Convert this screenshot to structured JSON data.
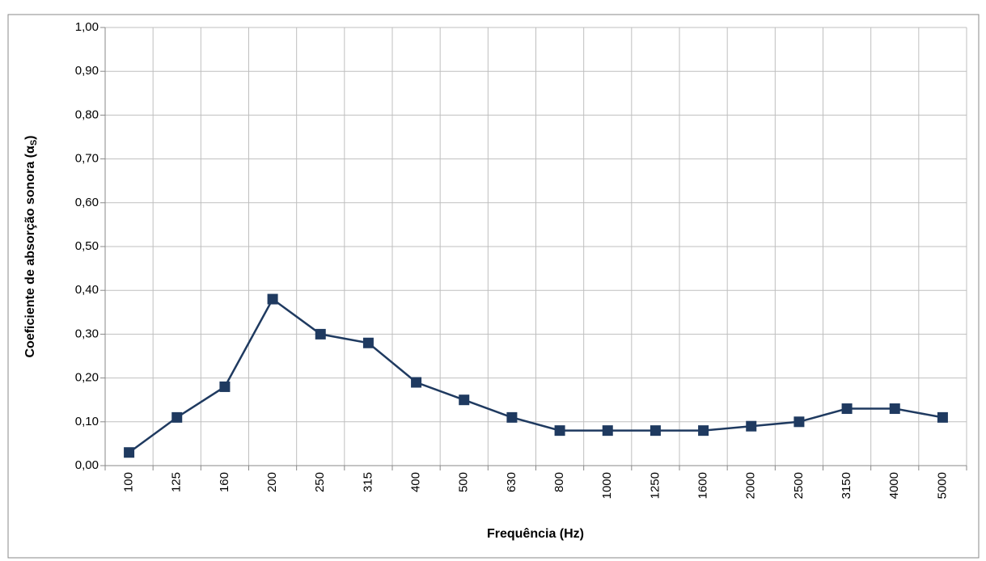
{
  "chart_data": {
    "type": "line",
    "x_label": "Frequência (Hz)",
    "y_label": "Coeficiente de absorção sonora (α",
    "y_label_sub": "S",
    "y_label_end": ")",
    "categories": [
      "100",
      "125",
      "160",
      "200",
      "250",
      "315",
      "400",
      "500",
      "630",
      "800",
      "1000",
      "1250",
      "1600",
      "2000",
      "2500",
      "3150",
      "4000",
      "5000"
    ],
    "series": [
      {
        "color": "#1f3a60",
        "values": [
          0.03,
          0.11,
          0.18,
          0.38,
          0.3,
          0.28,
          0.19,
          0.15,
          0.11,
          0.08,
          0.08,
          0.08,
          0.08,
          0.09,
          0.1,
          0.13,
          0.13,
          0.11
        ]
      }
    ],
    "ylim": [
      0,
      1
    ],
    "yticks": [
      {
        "value": 0,
        "label": "0,00"
      },
      {
        "value": 0.1,
        "label": "0,10"
      },
      {
        "value": 0.2,
        "label": "0,20"
      },
      {
        "value": 0.3,
        "label": "0,30"
      },
      {
        "value": 0.4,
        "label": "0,40"
      },
      {
        "value": 0.5,
        "label": "0,50"
      },
      {
        "value": 0.6,
        "label": "0,60"
      },
      {
        "value": 0.7,
        "label": "0,70"
      },
      {
        "value": 0.8,
        "label": "0,80"
      },
      {
        "value": 0.9,
        "label": "0,90"
      },
      {
        "value": 1,
        "label": "1,00"
      }
    ],
    "grid": true
  }
}
